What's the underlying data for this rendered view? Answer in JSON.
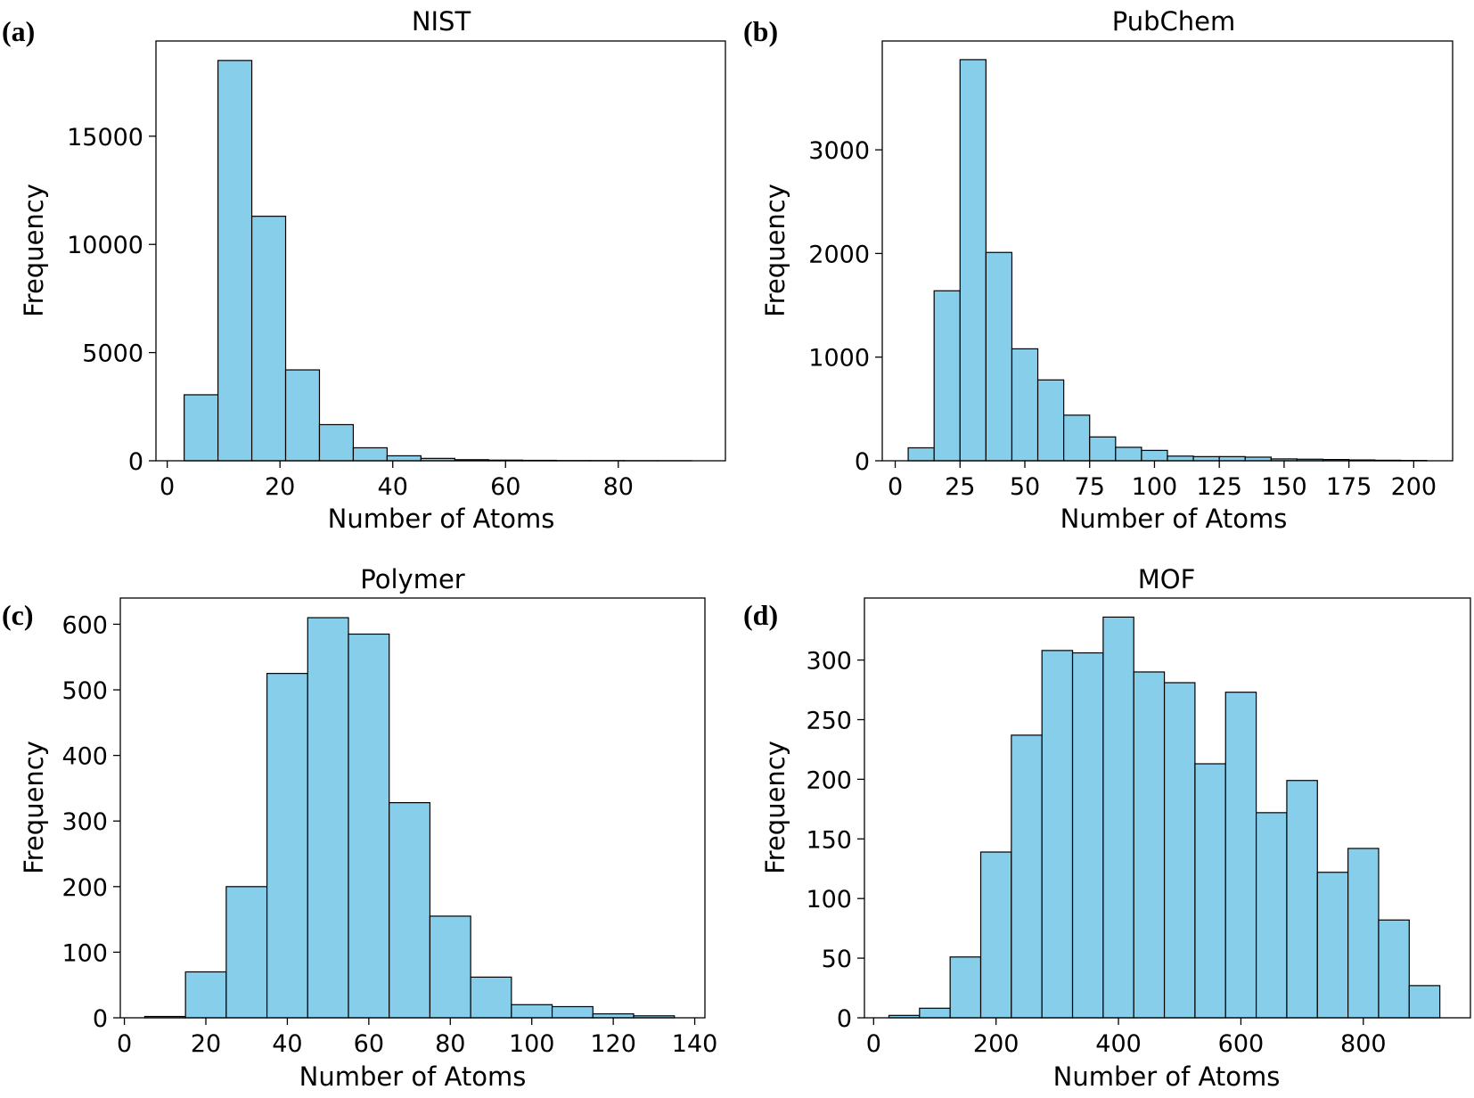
{
  "figure": {
    "bar_color": "#87ceeb",
    "edge_color": "#000000"
  },
  "chart_data": [
    {
      "panel_label": "(a)",
      "type": "bar",
      "title": "NIST",
      "xlabel": "Number of Atoms",
      "ylabel": "Frequency",
      "xlim": [
        -2,
        99
      ],
      "ylim": [
        0,
        19400
      ],
      "xticks": [
        0,
        20,
        40,
        60,
        80
      ],
      "yticks": [
        0,
        5000,
        10000,
        15000
      ],
      "grid": false,
      "bin_edges": [
        3,
        9,
        15,
        21,
        27,
        33,
        39,
        45,
        51,
        57,
        63,
        69,
        75,
        81,
        87,
        93
      ],
      "values": [
        3050,
        18500,
        11300,
        4200,
        1670,
        600,
        230,
        110,
        50,
        30,
        20,
        10,
        8,
        5,
        3
      ]
    },
    {
      "panel_label": "(b)",
      "type": "bar",
      "title": "PubChem",
      "xlabel": "Number of Atoms",
      "ylabel": "Frequency",
      "xlim": [
        -5,
        215
      ],
      "ylim": [
        0,
        4050
      ],
      "xticks": [
        0,
        25,
        50,
        75,
        100,
        125,
        150,
        175,
        200
      ],
      "yticks": [
        0,
        1000,
        2000,
        3000
      ],
      "grid": false,
      "bin_edges": [
        5,
        15,
        25,
        35,
        45,
        55,
        65,
        75,
        85,
        95,
        105,
        115,
        125,
        135,
        145,
        155,
        165,
        175,
        185,
        195,
        205
      ],
      "values": [
        125,
        1640,
        3870,
        2010,
        1080,
        780,
        440,
        230,
        130,
        100,
        45,
        40,
        40,
        35,
        18,
        15,
        12,
        8,
        5,
        3
      ]
    },
    {
      "panel_label": "(c)",
      "type": "bar",
      "title": "Polymer",
      "xlabel": "Number of Atoms",
      "ylabel": "Frequency",
      "xlim": [
        -1,
        142.5
      ],
      "ylim": [
        0,
        640
      ],
      "xticks": [
        0,
        20,
        40,
        60,
        80,
        100,
        120,
        140
      ],
      "yticks": [
        0,
        100,
        200,
        300,
        400,
        500,
        600
      ],
      "grid": false,
      "bin_edges": [
        5,
        15,
        25,
        35,
        45,
        55,
        65,
        75,
        85,
        95,
        105,
        115,
        125,
        135
      ],
      "values": [
        2,
        70,
        200,
        525,
        610,
        585,
        328,
        155,
        62,
        20,
        17,
        6,
        3
      ]
    },
    {
      "panel_label": "(d)",
      "type": "bar",
      "title": "MOF",
      "xlabel": "Number of Atoms",
      "ylabel": "Frequency",
      "xlim": [
        -15,
        975
      ],
      "ylim": [
        0,
        352
      ],
      "xticks": [
        0,
        200,
        400,
        600,
        800
      ],
      "yticks": [
        0,
        50,
        100,
        150,
        200,
        250,
        300
      ],
      "grid": false,
      "bin_edges": [
        25,
        75,
        125,
        175,
        225,
        275,
        325,
        375,
        425,
        475,
        525,
        575,
        625,
        675,
        725,
        775,
        825,
        875,
        925
      ],
      "values": [
        2,
        8,
        51,
        139,
        237,
        308,
        306,
        336,
        290,
        281,
        213,
        273,
        172,
        199,
        122,
        142,
        82,
        27
      ]
    }
  ]
}
